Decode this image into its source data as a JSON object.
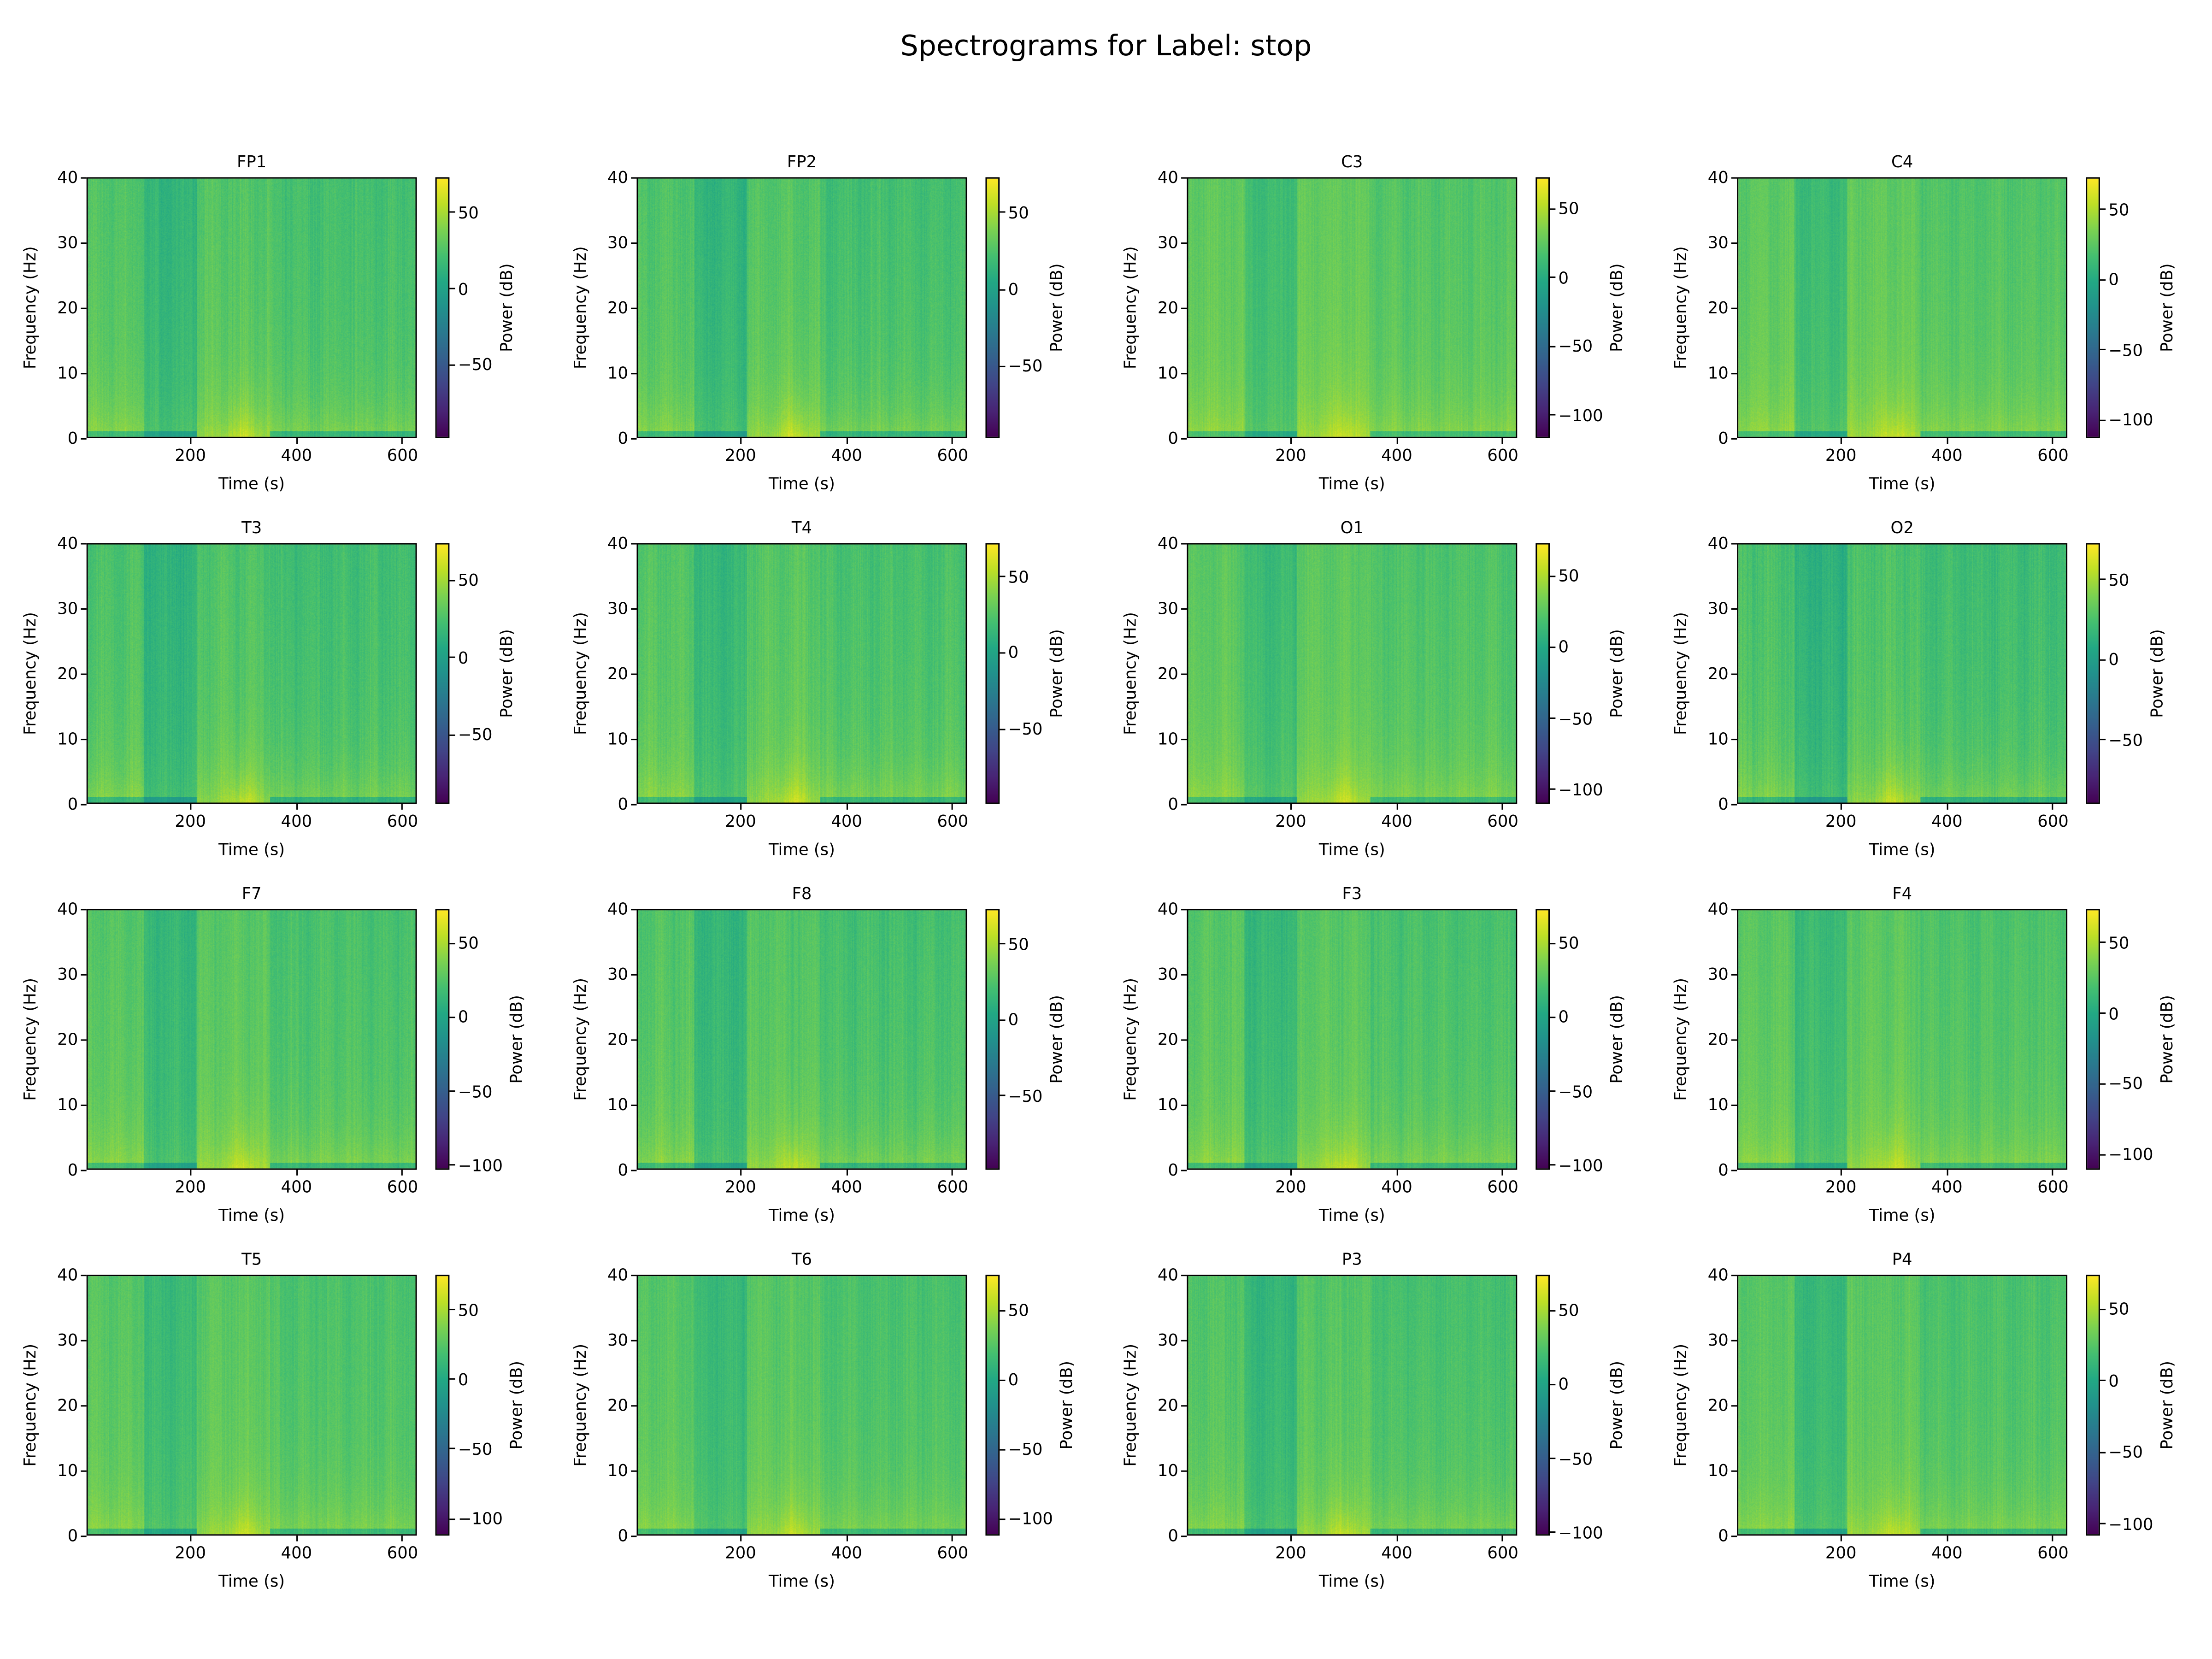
{
  "suptitle": "Spectrograms for Label: stop",
  "chart_data": [
    {
      "type": "heatmap",
      "title": "FP1",
      "xlabel": "Time (s)",
      "ylabel": "Frequency (Hz)",
      "colorbar_label": "Power (dB)",
      "colormap": "viridis",
      "xlim": [
        4,
        627
      ],
      "ylim": [
        0,
        40
      ],
      "xticks": [
        "200",
        "400",
        "600"
      ],
      "yticks": [
        "0",
        "10",
        "20",
        "30",
        "40"
      ],
      "clim": [
        -98,
        73
      ],
      "cticks": [
        "50",
        "0",
        "−50"
      ]
    },
    {
      "type": "heatmap",
      "title": "FP2",
      "xlabel": "Time (s)",
      "ylabel": "Frequency (Hz)",
      "colorbar_label": "Power (dB)",
      "colormap": "viridis",
      "xlim": [
        4,
        627
      ],
      "ylim": [
        0,
        40
      ],
      "xticks": [
        "200",
        "400",
        "600"
      ],
      "yticks": [
        "0",
        "10",
        "20",
        "30",
        "40"
      ],
      "clim": [
        -97,
        73
      ],
      "cticks": [
        "50",
        "0",
        "−50"
      ]
    },
    {
      "type": "heatmap",
      "title": "C3",
      "xlabel": "Time (s)",
      "ylabel": "Frequency (Hz)",
      "colorbar_label": "Power (dB)",
      "colormap": "viridis",
      "xlim": [
        4,
        627
      ],
      "ylim": [
        0,
        40
      ],
      "xticks": [
        "200",
        "400",
        "600"
      ],
      "yticks": [
        "0",
        "10",
        "20",
        "30",
        "40"
      ],
      "clim": [
        -117,
        73
      ],
      "cticks": [
        "50",
        "0",
        "−50",
        "−100"
      ]
    },
    {
      "type": "heatmap",
      "title": "C4",
      "xlabel": "Time (s)",
      "ylabel": "Frequency (Hz)",
      "colorbar_label": "Power (dB)",
      "colormap": "viridis",
      "xlim": [
        4,
        627
      ],
      "ylim": [
        0,
        40
      ],
      "xticks": [
        "200",
        "400",
        "600"
      ],
      "yticks": [
        "0",
        "10",
        "20",
        "30",
        "40"
      ],
      "clim": [
        -113,
        73
      ],
      "cticks": [
        "50",
        "0",
        "−50",
        "−100"
      ]
    },
    {
      "type": "heatmap",
      "title": "T3",
      "xlabel": "Time (s)",
      "ylabel": "Frequency (Hz)",
      "colorbar_label": "Power (dB)",
      "colormap": "viridis",
      "xlim": [
        4,
        627
      ],
      "ylim": [
        0,
        40
      ],
      "xticks": [
        "200",
        "400",
        "600"
      ],
      "yticks": [
        "0",
        "10",
        "20",
        "30",
        "40"
      ],
      "clim": [
        -95,
        74
      ],
      "cticks": [
        "50",
        "0",
        "−50"
      ]
    },
    {
      "type": "heatmap",
      "title": "T4",
      "xlabel": "Time (s)",
      "ylabel": "Frequency (Hz)",
      "colorbar_label": "Power (dB)",
      "colormap": "viridis",
      "xlim": [
        4,
        627
      ],
      "ylim": [
        0,
        40
      ],
      "xticks": [
        "200",
        "400",
        "600"
      ],
      "yticks": [
        "0",
        "10",
        "20",
        "30",
        "40"
      ],
      "clim": [
        -99,
        72
      ],
      "cticks": [
        "50",
        "0",
        "−50"
      ]
    },
    {
      "type": "heatmap",
      "title": "O1",
      "xlabel": "Time (s)",
      "ylabel": "Frequency (Hz)",
      "colorbar_label": "Power (dB)",
      "colormap": "viridis",
      "xlim": [
        4,
        627
      ],
      "ylim": [
        0,
        40
      ],
      "xticks": [
        "200",
        "400",
        "600"
      ],
      "yticks": [
        "0",
        "10",
        "20",
        "30",
        "40"
      ],
      "clim": [
        -110,
        73
      ],
      "cticks": [
        "50",
        "0",
        "−50",
        "−100"
      ]
    },
    {
      "type": "heatmap",
      "title": "O2",
      "xlabel": "Time (s)",
      "ylabel": "Frequency (Hz)",
      "colorbar_label": "Power (dB)",
      "colormap": "viridis",
      "xlim": [
        4,
        627
      ],
      "ylim": [
        0,
        40
      ],
      "xticks": [
        "200",
        "400",
        "600"
      ],
      "yticks": [
        "0",
        "10",
        "20",
        "30",
        "40"
      ],
      "clim": [
        -90,
        73
      ],
      "cticks": [
        "50",
        "0",
        "−50"
      ]
    },
    {
      "type": "heatmap",
      "title": "F7",
      "xlabel": "Time (s)",
      "ylabel": "Frequency (Hz)",
      "colorbar_label": "Power (dB)",
      "colormap": "viridis",
      "xlim": [
        4,
        627
      ],
      "ylim": [
        0,
        40
      ],
      "xticks": [
        "200",
        "400",
        "600"
      ],
      "yticks": [
        "0",
        "10",
        "20",
        "30",
        "40"
      ],
      "clim": [
        -103,
        73
      ],
      "cticks": [
        "50",
        "0",
        "−50",
        "−100"
      ]
    },
    {
      "type": "heatmap",
      "title": "F8",
      "xlabel": "Time (s)",
      "ylabel": "Frequency (Hz)",
      "colorbar_label": "Power (dB)",
      "colormap": "viridis",
      "xlim": [
        4,
        627
      ],
      "ylim": [
        0,
        40
      ],
      "xticks": [
        "200",
        "400",
        "600"
      ],
      "yticks": [
        "0",
        "10",
        "20",
        "30",
        "40"
      ],
      "clim": [
        -99,
        73
      ],
      "cticks": [
        "50",
        "0",
        "−50"
      ]
    },
    {
      "type": "heatmap",
      "title": "F3",
      "xlabel": "Time (s)",
      "ylabel": "Frequency (Hz)",
      "colorbar_label": "Power (dB)",
      "colormap": "viridis",
      "xlim": [
        4,
        627
      ],
      "ylim": [
        0,
        40
      ],
      "xticks": [
        "200",
        "400",
        "600"
      ],
      "yticks": [
        "0",
        "10",
        "20",
        "30",
        "40"
      ],
      "clim": [
        -103,
        73
      ],
      "cticks": [
        "50",
        "0",
        "−50",
        "−100"
      ]
    },
    {
      "type": "heatmap",
      "title": "F4",
      "xlabel": "Time (s)",
      "ylabel": "Frequency (Hz)",
      "colorbar_label": "Power (dB)",
      "colormap": "viridis",
      "xlim": [
        4,
        627
      ],
      "ylim": [
        0,
        40
      ],
      "xticks": [
        "200",
        "400",
        "600"
      ],
      "yticks": [
        "0",
        "10",
        "20",
        "30",
        "40"
      ],
      "clim": [
        -111,
        74
      ],
      "cticks": [
        "50",
        "0",
        "−50",
        "−100"
      ]
    },
    {
      "type": "heatmap",
      "title": "T5",
      "xlabel": "Time (s)",
      "ylabel": "Frequency (Hz)",
      "colorbar_label": "Power (dB)",
      "colormap": "viridis",
      "xlim": [
        4,
        627
      ],
      "ylim": [
        0,
        40
      ],
      "xticks": [
        "200",
        "400",
        "600"
      ],
      "yticks": [
        "0",
        "10",
        "20",
        "30",
        "40"
      ],
      "clim": [
        -112,
        75
      ],
      "cticks": [
        "50",
        "0",
        "−50",
        "−100"
      ]
    },
    {
      "type": "heatmap",
      "title": "T6",
      "xlabel": "Time (s)",
      "ylabel": "Frequency (Hz)",
      "colorbar_label": "Power (dB)",
      "colormap": "viridis",
      "xlim": [
        4,
        627
      ],
      "ylim": [
        0,
        40
      ],
      "xticks": [
        "200",
        "400",
        "600"
      ],
      "yticks": [
        "0",
        "10",
        "20",
        "30",
        "40"
      ],
      "clim": [
        -112,
        76
      ],
      "cticks": [
        "50",
        "0",
        "−50",
        "−100"
      ]
    },
    {
      "type": "heatmap",
      "title": "P3",
      "xlabel": "Time (s)",
      "ylabel": "Frequency (Hz)",
      "colorbar_label": "Power (dB)",
      "colormap": "viridis",
      "xlim": [
        4,
        627
      ],
      "ylim": [
        0,
        40
      ],
      "xticks": [
        "200",
        "400",
        "600"
      ],
      "yticks": [
        "0",
        "10",
        "20",
        "30",
        "40"
      ],
      "clim": [
        -102,
        74
      ],
      "cticks": [
        "50",
        "0",
        "−50",
        "−100"
      ]
    },
    {
      "type": "heatmap",
      "title": "P4",
      "xlabel": "Time (s)",
      "ylabel": "Frequency (Hz)",
      "colorbar_label": "Power (dB)",
      "colormap": "viridis",
      "xlim": [
        4,
        627
      ],
      "ylim": [
        0,
        40
      ],
      "xticks": [
        "200",
        "400",
        "600"
      ],
      "yticks": [
        "0",
        "10",
        "20",
        "30",
        "40"
      ],
      "clim": [
        -108,
        74
      ],
      "cticks": [
        "50",
        "0",
        "−50",
        "−100"
      ]
    }
  ],
  "pattern": {
    "time_segments_s": [
      [
        0,
        110
      ],
      [
        110,
        210
      ],
      [
        210,
        350
      ],
      [
        350,
        627
      ]
    ],
    "segment_power_db": [
      30,
      18,
      31,
      26
    ],
    "low_freq_peak_time_s": 300
  }
}
